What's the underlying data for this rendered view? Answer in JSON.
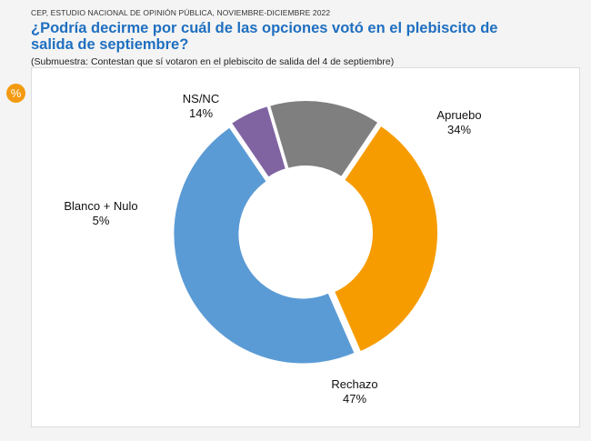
{
  "source": "CEP, ESTUDIO NACIONAL DE OPINIÓN PÚBLICA, NOVIEMBRE-DICIEMBRE 2022",
  "badge": "%",
  "chart_data": {
    "type": "pie",
    "variant": "donut",
    "title": "¿Podría decirme por cuál de las opciones votó en el plebiscito de salida de septiembre?",
    "subtitle": "(Submuestra: Contestan que sí votaron en el plebiscito de salida del 4 de septiembre)",
    "unit": "%",
    "slices": [
      {
        "label": "Apruebo",
        "value": 34,
        "color": "#f79c00"
      },
      {
        "label": "Rechazo",
        "value": 47,
        "color": "#5b9bd5"
      },
      {
        "label": "Blanco + Nulo",
        "value": 5,
        "color": "#8064a2"
      },
      {
        "label": "NS/NC",
        "value": 14,
        "color": "#7f7f7f"
      }
    ]
  }
}
